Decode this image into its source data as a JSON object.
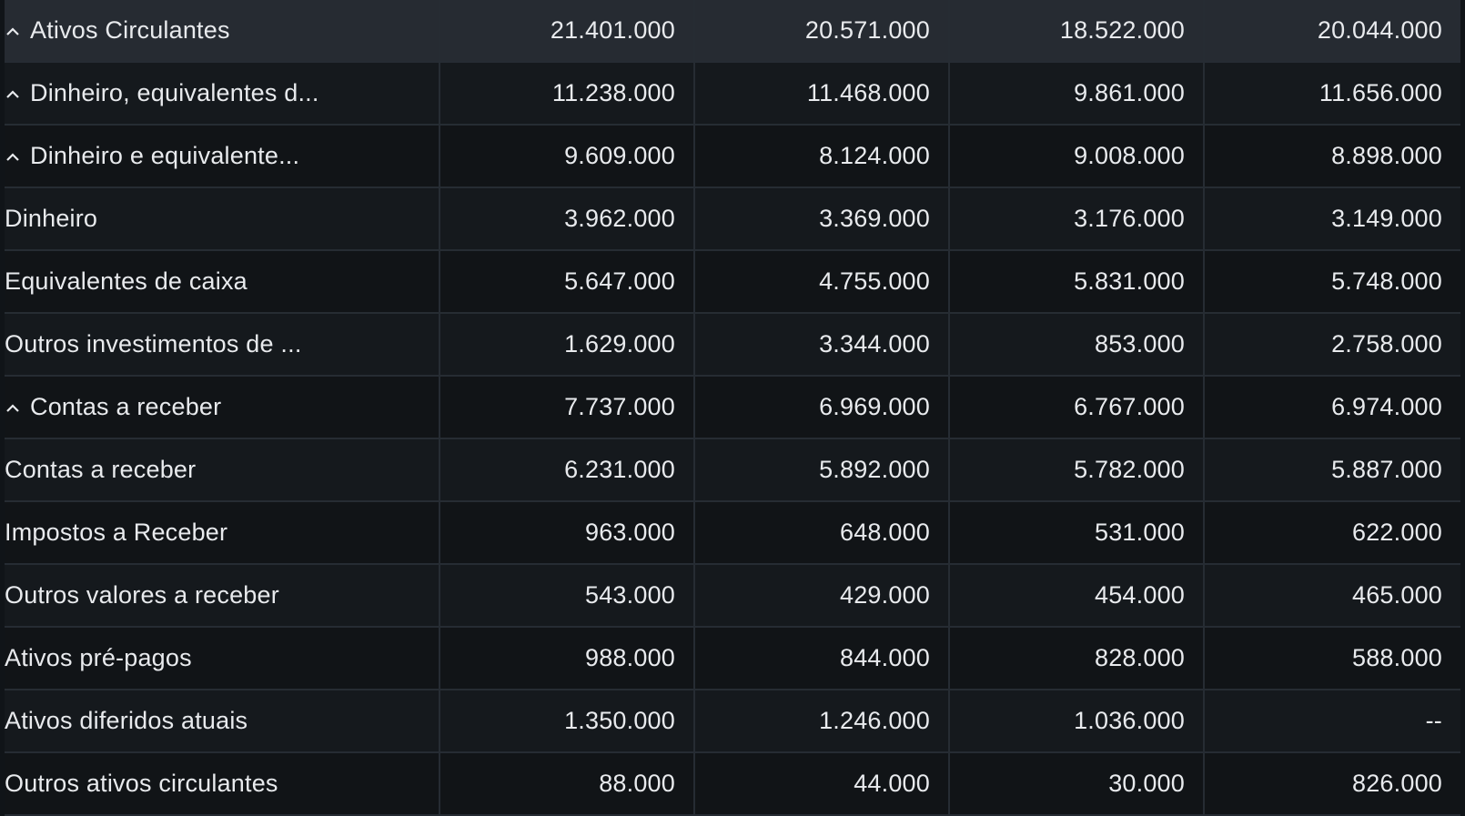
{
  "table": {
    "rows": [
      {
        "label": "Ativos Circulantes",
        "values": [
          "21.401.000",
          "20.571.000",
          "18.522.000",
          "20.044.000"
        ]
      },
      {
        "label": "Dinheiro, equivalentes d...",
        "values": [
          "11.238.000",
          "11.468.000",
          "9.861.000",
          "11.656.000"
        ]
      },
      {
        "label": "Dinheiro e equivalente...",
        "values": [
          "9.609.000",
          "8.124.000",
          "9.008.000",
          "8.898.000"
        ]
      },
      {
        "label": "Dinheiro",
        "values": [
          "3.962.000",
          "3.369.000",
          "3.176.000",
          "3.149.000"
        ]
      },
      {
        "label": "Equivalentes de caixa",
        "values": [
          "5.647.000",
          "4.755.000",
          "5.831.000",
          "5.748.000"
        ]
      },
      {
        "label": "Outros investimentos de ...",
        "values": [
          "1.629.000",
          "3.344.000",
          "853.000",
          "2.758.000"
        ]
      },
      {
        "label": "Contas a receber",
        "values": [
          "7.737.000",
          "6.969.000",
          "6.767.000",
          "6.974.000"
        ]
      },
      {
        "label": "Contas a receber",
        "values": [
          "6.231.000",
          "5.892.000",
          "5.782.000",
          "5.887.000"
        ]
      },
      {
        "label": "Impostos a Receber",
        "values": [
          "963.000",
          "648.000",
          "531.000",
          "622.000"
        ]
      },
      {
        "label": "Outros valores a receber",
        "values": [
          "543.000",
          "429.000",
          "454.000",
          "465.000"
        ]
      },
      {
        "label": "Ativos pré-pagos",
        "values": [
          "988.000",
          "844.000",
          "828.000",
          "588.000"
        ]
      },
      {
        "label": "Ativos diferidos atuais",
        "values": [
          "1.350.000",
          "1.246.000",
          "1.036.000",
          "--"
        ]
      },
      {
        "label": "Outros ativos circulantes",
        "values": [
          "88.000",
          "44.000",
          "30.000",
          "826.000"
        ]
      }
    ]
  },
  "icons": {
    "collapse": "chevron-up-icon"
  },
  "colors": {
    "background": "#101418",
    "header_row": "#262b32",
    "row_odd": "#15191d",
    "row_even": "#111417",
    "grid": "#262c33",
    "text": "#e8eaed"
  }
}
